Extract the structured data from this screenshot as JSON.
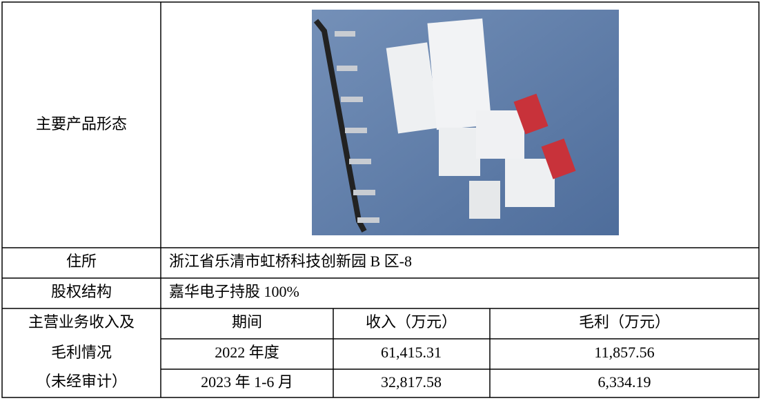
{
  "rows": [
    {
      "label": "主要产品形态"
    },
    {
      "label": "住所",
      "value": "浙江省乐清市虹桥科技创新园 B 区-8"
    },
    {
      "label": "股权结构",
      "value": "嘉华电子持股 100%"
    }
  ],
  "revenue": {
    "label": [
      "主营业务收入及",
      "毛利情况",
      "（未经审计）"
    ],
    "header": [
      "期间",
      "收入（万元）",
      "毛利（万元）"
    ],
    "rows": [
      [
        "2022 年度",
        "61,415.31",
        "11,857.56"
      ],
      [
        "2023 年 1-6 月",
        "32,817.58",
        "6,334.19"
      ]
    ]
  }
}
